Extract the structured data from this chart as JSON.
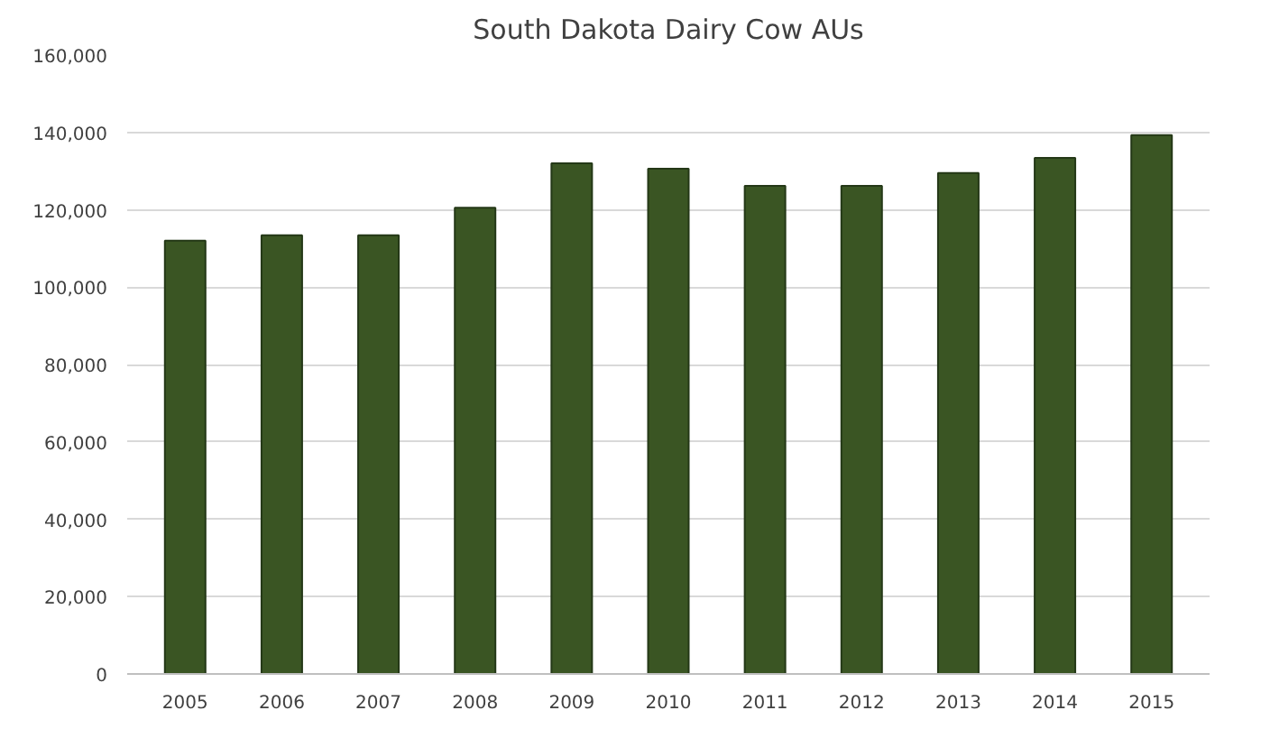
{
  "chart_data": {
    "type": "bar",
    "title": "South Dakota Dairy Cow AUs",
    "categories": [
      "2005",
      "2006",
      "2007",
      "2008",
      "2009",
      "2010",
      "2011",
      "2012",
      "2013",
      "2014",
      "2015"
    ],
    "values": [
      112000,
      113400,
      113400,
      120500,
      132000,
      130600,
      126200,
      126200,
      129500,
      133400,
      139300
    ],
    "color": "#3a5523",
    "ylim": [
      0,
      160000
    ],
    "yticks": [
      {
        "value": 0,
        "label": "0"
      },
      {
        "value": 20000,
        "label": "20,000"
      },
      {
        "value": 40000,
        "label": "40,000"
      },
      {
        "value": 60000,
        "label": "60,000"
      },
      {
        "value": 80000,
        "label": "80,000"
      },
      {
        "value": 100000,
        "label": "100,000"
      },
      {
        "value": 120000,
        "label": "120,000"
      },
      {
        "value": 140000,
        "label": "140,000"
      },
      {
        "value": 160000,
        "label": "160,000"
      }
    ],
    "grid": "y"
  }
}
